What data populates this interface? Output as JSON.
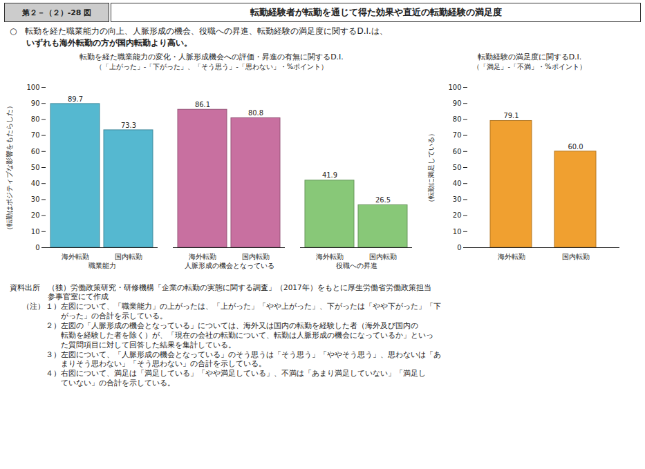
{
  "title_box": "第２－（２）-28 図",
  "title": "転勤経験者が転勤を通じて得た効果や直近の転勤経験の満足度",
  "subtitle": [
    "○　転勤を経た職業能力の向上、人脈形成の機会、役職への昇進、転勤経験の満足度に関するD.I.は、",
    "　　いずれも海外転勤の方が国内転勤より高い。"
  ],
  "source": [
    "資料出所　（独）労働政策研究・研修機構「企業の転勤の実態に関する調査」（2017年）をもとに厚生労働省労働政策担当",
    "　　　　　参事官室にて作成"
  ],
  "note_header": "（注）",
  "notes": [
    "１）左図について、「職業能力」の上がったは、「上がった」「やや上がった」、下がったは「やや下がった」「下",
    "　　がった」の合計を示している。",
    "２）左図の「人脈形成の機会となっている」については、海外又は国内の転勤を経験した者（海外及び国内の",
    "　　転勤を経験した者を除く）が、「現在の会社の転勤について、転勤は人脈形成の機会になっているか」といっ",
    "　　た質問項目に対して回答した結果を集計している。",
    "３）左図について、「人脈形成の機会となっている」のそう思うは「そう思う」「ややそう思う」、思わないは「あ",
    "　　まりそう思わない」「そう思わない」の合計を示している。",
    "４）右図について、満足は「満足している」「やや満足している」、不満は「あまり満足していない」「満足し",
    "　　ていない」の合計を示している。"
  ],
  "chart_data": [
    {
      "type": "bar",
      "title": "転勤を経た職業能力の変化・人脈形成機会への評価・昇進の有無に関するD.I.",
      "subtitle": "（「上がった」-「下がった」、「そう思う」-「思わない」・%ポイント）",
      "ylabel": "（転勤はポジティブな影響をもたらした）",
      "categories": [
        "職業能力",
        "人脈形成の機会となっている",
        "役職への昇進"
      ],
      "series": [
        {
          "name": "海外転勤",
          "values": [
            89.7,
            86.1,
            41.9
          ]
        },
        {
          "name": "国内転勤",
          "values": [
            73.3,
            80.8,
            26.5
          ]
        }
      ],
      "colors": [
        "#55b8d0",
        "#c870a0",
        "#88c878"
      ],
      "ylim": [
        0,
        100
      ],
      "yticks": [
        0,
        10,
        20,
        30,
        40,
        50,
        60,
        70,
        80,
        90,
        100
      ],
      "grid": false,
      "data_labels": true
    },
    {
      "type": "bar",
      "title": "転勤経験の満足度に関するD.I.",
      "subtitle": "（「満足」-「不満」・%ポイント）",
      "ylabel": "（転勤に満足している）",
      "categories": [
        "海外転勤",
        "国内転勤"
      ],
      "values": [
        79.1,
        60.0
      ],
      "value_labels": [
        "79.1",
        "60.0"
      ],
      "color": "#f0a030",
      "ylim": [
        0,
        100
      ],
      "yticks": [
        0,
        10,
        20,
        30,
        40,
        50,
        60,
        70,
        80,
        90,
        100
      ],
      "grid": false,
      "data_labels": true
    }
  ]
}
